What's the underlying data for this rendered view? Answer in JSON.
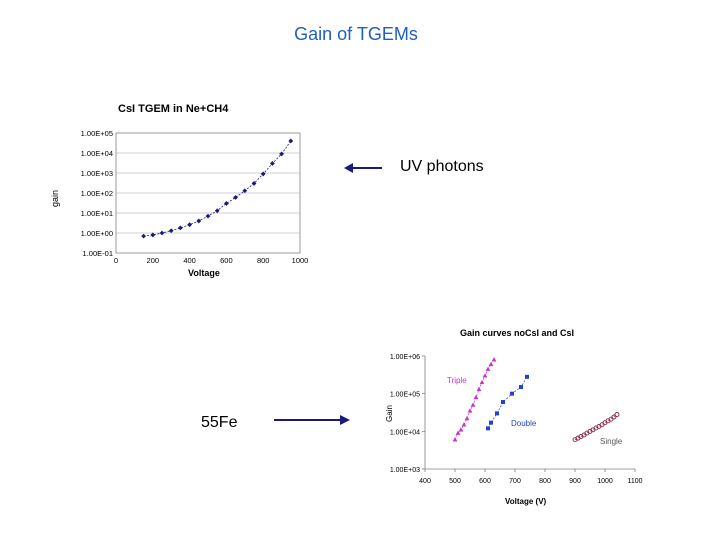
{
  "slide": {
    "title": "Gain of TGEMs",
    "uv_label": "UV photons",
    "fe_label": "55Fe"
  },
  "colors": {
    "title": "#1f5fbf",
    "chart1_series": "#1a1a7a",
    "triple": "#cc33cc",
    "double": "#2244cc",
    "single": "#882244",
    "arrow": "#1a1a7a"
  },
  "chart_data": [
    {
      "type": "line",
      "title": "CsI TGEM in Ne+CH4",
      "xlabel": "Voltage",
      "ylabel": "gain",
      "x_ticks": [
        "0",
        "200",
        "400",
        "600",
        "800",
        "1000"
      ],
      "y_ticks": [
        "1.00E-01",
        "1.00E+00",
        "1.00E+01",
        "1.00E+02",
        "1.00E+03",
        "1.00E+04",
        "1.00E+05"
      ],
      "xlim": [
        0,
        1000
      ],
      "ylim": [
        0.1,
        100000
      ],
      "y_scale": "log",
      "grid": true,
      "series": [
        {
          "x": [
            150,
            200,
            250,
            300,
            350,
            400,
            450,
            500,
            550,
            600,
            650,
            700,
            750,
            800,
            850,
            900,
            950
          ],
          "y": [
            0.7,
            0.8,
            1.0,
            1.3,
            1.8,
            2.6,
            4,
            7,
            13,
            30,
            60,
            130,
            300,
            900,
            3000,
            9000,
            40000
          ]
        }
      ]
    },
    {
      "type": "scatter",
      "title": "Gain curves noCsI and CsI",
      "xlabel": "Voltage (V)",
      "ylabel": "Gain",
      "x_ticks": [
        "400",
        "500",
        "600",
        "700",
        "800",
        "900",
        "1000",
        "1100"
      ],
      "y_ticks": [
        "1.00E+03",
        "1.00E+04",
        "1.00E+05",
        "1.00E+06"
      ],
      "xlim": [
        400,
        1100
      ],
      "ylim": [
        1000,
        1000000
      ],
      "y_scale": "log",
      "grid": false,
      "series": [
        {
          "name": "Triple",
          "x": [
            500,
            510,
            520,
            530,
            540,
            550,
            560,
            570,
            580,
            590,
            600,
            610,
            620,
            630
          ],
          "y": [
            6000,
            9000,
            11000,
            15000,
            22000,
            35000,
            50000,
            80000,
            130000,
            200000,
            300000,
            450000,
            600000,
            800000
          ]
        },
        {
          "name": "Double",
          "x": [
            610,
            620,
            640,
            660,
            690,
            720,
            740
          ],
          "y": [
            12000,
            17000,
            30000,
            60000,
            100000,
            150000,
            280000
          ]
        },
        {
          "name": "Single",
          "x": [
            900,
            910,
            920,
            930,
            940,
            950,
            960,
            970,
            980,
            990,
            1000,
            1010,
            1020,
            1030,
            1040
          ],
          "y": [
            6000,
            6600,
            7300,
            8000,
            9000,
            10000,
            11000,
            12300,
            13500,
            15000,
            17000,
            19000,
            21000,
            24000,
            28000
          ]
        }
      ]
    }
  ]
}
